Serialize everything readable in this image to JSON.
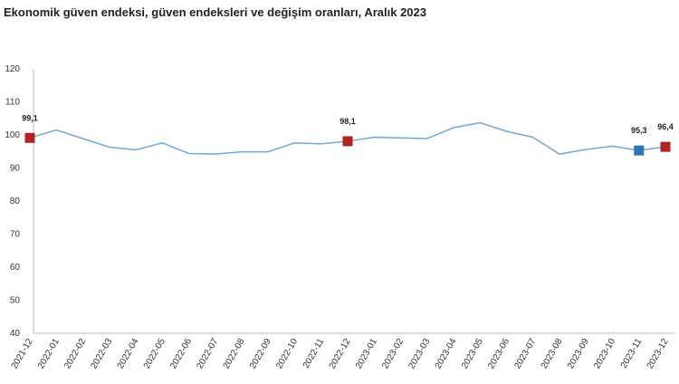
{
  "chart_data": {
    "type": "line",
    "title": "Ekonomik güven endeksi, güven endeksleri ve değişim oranları, Aralık 2023",
    "categories": [
      "2021-12",
      "2022-01",
      "2022-02",
      "2022-03",
      "2022-04",
      "2022-05",
      "2022-06",
      "2022-07",
      "2022-08",
      "2022-09",
      "2022-10",
      "2022-11",
      "2022-12",
      "2023-01",
      "2023-02",
      "2023-03",
      "2023-04",
      "2023-05",
      "2023-06",
      "2023-07",
      "2023-08",
      "2023-09",
      "2023-10",
      "2023-11",
      "2023-12"
    ],
    "series": [
      {
        "color": "#6fa8d6",
        "values": [
          99.1,
          101.5,
          98.9,
          96.3,
          95.5,
          97.6,
          94.4,
          94.2,
          94.9,
          94.9,
          97.6,
          97.3,
          98.1,
          99.3,
          99.1,
          98.9,
          102.2,
          103.7,
          101.1,
          99.3,
          94.2,
          95.6,
          96.6,
          95.3,
          96.4
        ],
        "value_labels": [
          "99,1",
          null,
          null,
          null,
          null,
          null,
          null,
          null,
          null,
          null,
          null,
          null,
          "98,1",
          null,
          null,
          null,
          null,
          null,
          null,
          null,
          null,
          null,
          null,
          "95,3",
          "96,4"
        ],
        "marker_colors": [
          "#b22222",
          null,
          null,
          null,
          null,
          null,
          null,
          null,
          null,
          null,
          null,
          null,
          "#b22222",
          null,
          null,
          null,
          null,
          null,
          null,
          null,
          null,
          null,
          null,
          "#2e75b6",
          "#b22222"
        ]
      }
    ],
    "ylim": [
      40,
      120
    ],
    "yticks": [
      40,
      50,
      60,
      70,
      80,
      90,
      100,
      110,
      120
    ],
    "grid": false
  }
}
